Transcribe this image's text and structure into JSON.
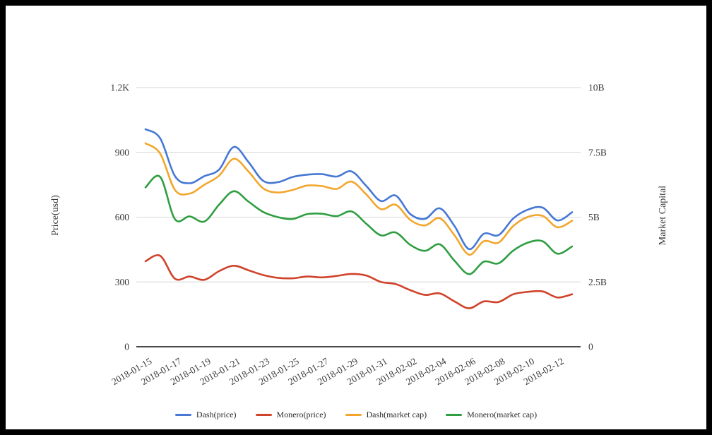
{
  "figure": {
    "background": "#ffffff",
    "frame_color": "#000000",
    "grid_color": "#d6d6d6",
    "baseline_color": "#2e2e2e",
    "text_color": "#383838"
  },
  "chart_data": {
    "type": "line",
    "x": [
      "2018-01-15",
      "2018-01-16",
      "2018-01-17",
      "2018-01-18",
      "2018-01-19",
      "2018-01-20",
      "2018-01-21",
      "2018-01-22",
      "2018-01-23",
      "2018-01-24",
      "2018-01-25",
      "2018-01-26",
      "2018-01-27",
      "2018-01-28",
      "2018-01-29",
      "2018-01-30",
      "2018-01-31",
      "2018-02-01",
      "2018-02-02",
      "2018-02-03",
      "2018-02-04",
      "2018-02-05",
      "2018-02-06",
      "2018-02-07",
      "2018-02-08",
      "2018-02-09",
      "2018-02-10",
      "2018-02-11",
      "2018-02-12",
      "2018-02-13"
    ],
    "x_tick_labels": [
      "2018-01-15",
      "2018-01-17",
      "2018-01-19",
      "2018-01-21",
      "2018-01-23",
      "2018-01-25",
      "2018-01-27",
      "2018-01-29",
      "2018-01-31",
      "2018-02-02",
      "2018-02-04",
      "2018-02-06",
      "2018-02-08",
      "2018-02-10",
      "2018-02-12"
    ],
    "x_tick_every": 2,
    "series": [
      {
        "name": "Dash(price)",
        "axis": "left",
        "color": "#4678d4",
        "values": [
          1007,
          965,
          790,
          757,
          790,
          820,
          925,
          855,
          768,
          762,
          786,
          797,
          799,
          788,
          812,
          745,
          675,
          700,
          614,
          592,
          641,
          559,
          452,
          523,
          517,
          594,
          635,
          644,
          585,
          623
        ]
      },
      {
        "name": "Monero(price)",
        "axis": "left",
        "color": "#d0432b",
        "values": [
          396,
          421,
          315,
          325,
          310,
          350,
          375,
          354,
          332,
          319,
          317,
          325,
          321,
          328,
          337,
          330,
          300,
          290,
          262,
          240,
          247,
          210,
          178,
          210,
          207,
          243,
          254,
          256,
          228,
          243
        ]
      },
      {
        "name": "Dash(market cap)",
        "axis": "right",
        "color": "#f2a62c",
        "values": [
          7.85,
          7.45,
          6.05,
          5.91,
          6.25,
          6.6,
          7.25,
          6.76,
          6.11,
          5.95,
          6.05,
          6.22,
          6.2,
          6.09,
          6.37,
          5.88,
          5.31,
          5.48,
          4.89,
          4.68,
          4.96,
          4.3,
          3.55,
          4.07,
          4.02,
          4.66,
          5.01,
          5.05,
          4.61,
          4.86
        ]
      },
      {
        "name": "Monero(market cap)",
        "axis": "right",
        "color": "#2f9e41",
        "values": [
          6.15,
          6.55,
          4.92,
          5.03,
          4.83,
          5.48,
          6.0,
          5.6,
          5.2,
          5.0,
          4.93,
          5.12,
          5.13,
          5.04,
          5.22,
          4.75,
          4.3,
          4.41,
          3.93,
          3.7,
          3.95,
          3.32,
          2.8,
          3.28,
          3.22,
          3.71,
          4.02,
          4.07,
          3.59,
          3.87
        ]
      }
    ],
    "left_axis": {
      "label": "Price(usd)",
      "range": [
        0,
        1200
      ],
      "ticks": [
        {
          "v": 0,
          "label": "0"
        },
        {
          "v": 300,
          "label": "300"
        },
        {
          "v": 600,
          "label": "600"
        },
        {
          "v": 900,
          "label": "900"
        },
        {
          "v": 1200,
          "label": "1.2K"
        }
      ]
    },
    "right_axis": {
      "label": "Market Capital",
      "range": [
        0,
        10
      ],
      "ticks": [
        {
          "v": 0,
          "label": "0"
        },
        {
          "v": 2.5,
          "label": "2.5B"
        },
        {
          "v": 5,
          "label": "5B"
        },
        {
          "v": 7.5,
          "label": "7.5B"
        },
        {
          "v": 10,
          "label": "10B"
        }
      ]
    },
    "grid": true,
    "legend_position": "bottom"
  }
}
